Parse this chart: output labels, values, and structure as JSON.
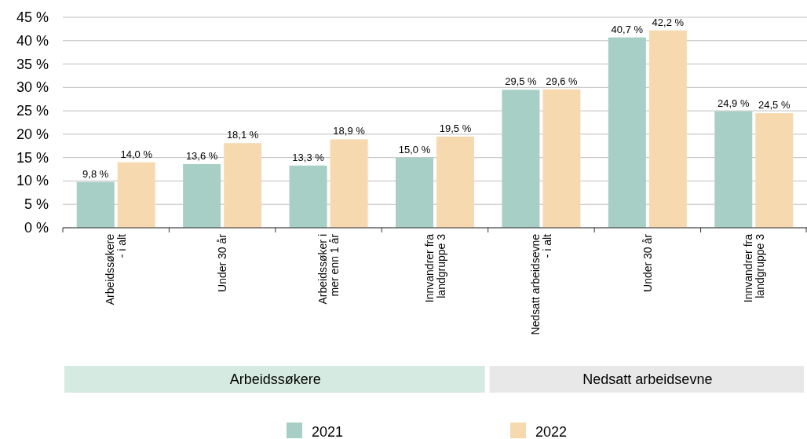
{
  "chart_data": {
    "type": "bar",
    "categories": [
      "Arbeidssøkere\n- i alt",
      "Under 30 år",
      "Arbeidssøker i\nmer enn 1 år",
      "Innvandrer fra\nlandgruppe 3",
      "Nedsatt arbeidsevne\n- i alt",
      "Under 30 år",
      "Innvandrer fra\nlandgruppe 3"
    ],
    "series": [
      {
        "name": "2021",
        "color": "#a8cfc5",
        "values": [
          9.8,
          13.6,
          13.3,
          15.0,
          29.5,
          40.7,
          24.9
        ],
        "value_labels": [
          "9,8 %",
          "13,6 %",
          "13,3 %",
          "15,0 %",
          "29,5 %",
          "40,7 %",
          "24,9 %"
        ]
      },
      {
        "name": "2022",
        "color": "#f7d9b0",
        "values": [
          14.0,
          18.1,
          18.9,
          19.5,
          29.6,
          42.2,
          24.5
        ],
        "value_labels": [
          "14,0 %",
          "18,1 %",
          "18,9 %",
          "19,5 %",
          "29,6 %",
          "42,2 %",
          "24,5 %"
        ]
      }
    ],
    "ylim": [
      0,
      45
    ],
    "yticks": [
      {
        "value": 0,
        "label": "0 %"
      },
      {
        "value": 5,
        "label": "5 %"
      },
      {
        "value": 10,
        "label": "10 %"
      },
      {
        "value": 15,
        "label": "15 %"
      },
      {
        "value": 20,
        "label": "20 %"
      },
      {
        "value": 25,
        "label": "25 %"
      },
      {
        "value": 30,
        "label": "30 %"
      },
      {
        "value": 35,
        "label": "35 %"
      },
      {
        "value": 40,
        "label": "40 %"
      },
      {
        "value": 45,
        "label": "45 %"
      }
    ],
    "grid": "y",
    "legend": "bottom",
    "annotations": [
      "Arbeidssøkere",
      "Nedsatt arbeidsevne"
    ]
  }
}
